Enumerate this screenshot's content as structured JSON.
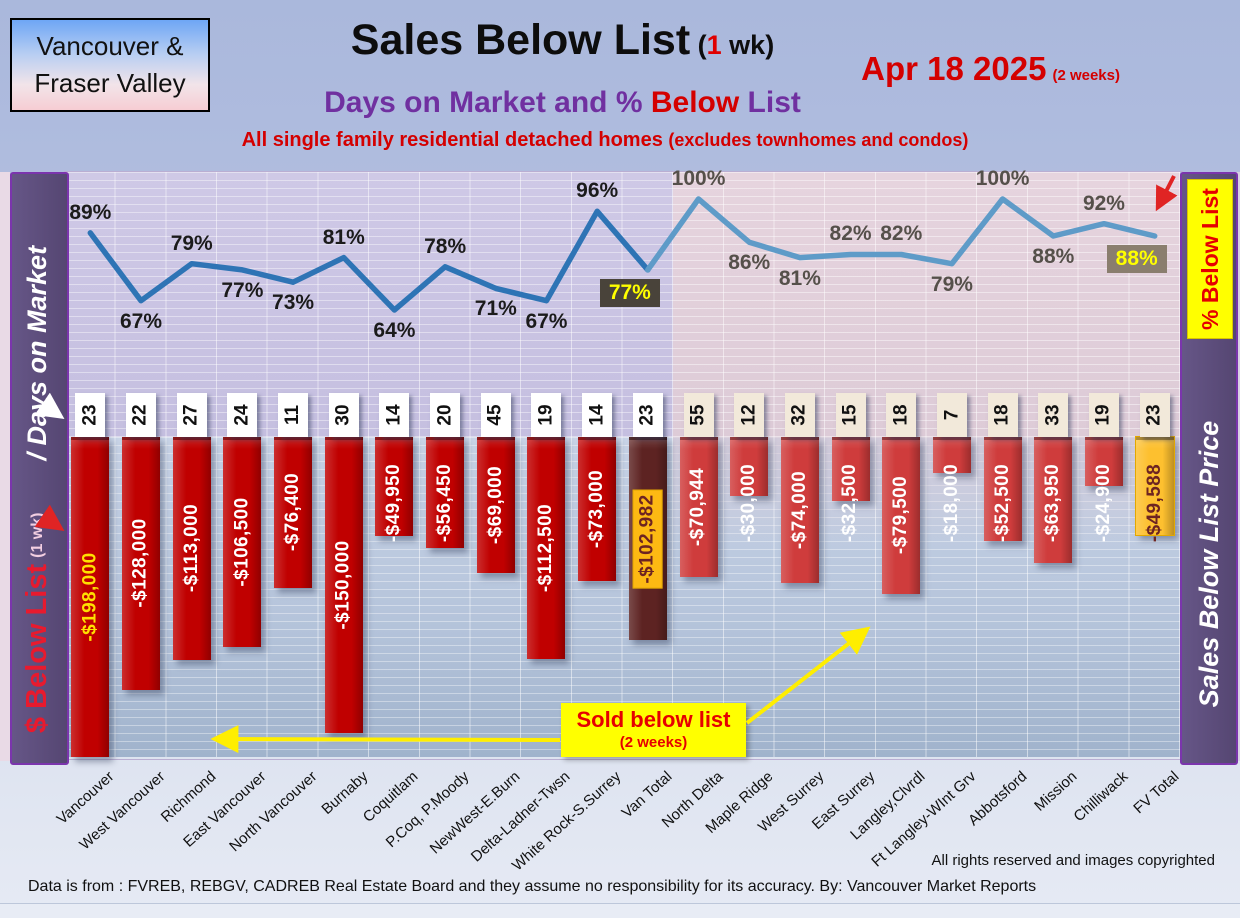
{
  "header": {
    "region_line1": "Vancouver &",
    "region_line2": "Fraser Valley",
    "title_main": "Sales Below List",
    "title_paren_open": " (",
    "title_one": "1",
    "title_paren_rest": " wk)",
    "date": "Apr 18  2025",
    "date_note": "(2 weeks)",
    "subtitle_purple1": "Days on Market and % ",
    "subtitle_red": "Below ",
    "subtitle_purple2": "List",
    "tagline_main": "All single family residential detached homes ",
    "tagline_paren": "(excludes townhomes and condos)"
  },
  "left_band": {
    "dollar_label": "$ Below List",
    "dollar_label_small": "(1 wk)",
    "days_label": "/ Days on Market"
  },
  "right_band": {
    "pct_label": "% Below List",
    "price_label": "Sales Below List Price"
  },
  "sold_note": {
    "line1": "Sold below list",
    "line2": "(2 weeks)"
  },
  "footer": {
    "rights": "All rights reserved and  images copyrighted",
    "source": "Data is from : FVREB, REBGV, CADREB Real Estate Board and they assume no responsibility for its accuracy. By: Vancouver Market Reports"
  },
  "chart_data": {
    "type": "combo: line (% below list) + inverted bars ($ below list) + days-on-market label row",
    "title": "Sales Below List (1 wk) - Days on Market and % Below List",
    "categories": [
      "Vancouver",
      "West Vancouver",
      "Richmond",
      "East Vancouver",
      "North Vancouver",
      "Burnaby",
      "Coquitlam",
      "P.Coq, P.Moody",
      "NewWest-E.Burn",
      "Delta-Ladner-Twsn",
      "White Rock-S.Surrey",
      "Van Total",
      "North Delta",
      "Maple Ridge",
      "West Surrey",
      "East Surrey",
      "Langley,Clvrdl",
      "Ft Langley-WInt Grv",
      "Abbotsford",
      "Mission",
      "Chilliwack",
      "FV Total"
    ],
    "van_count": 12,
    "series": [
      {
        "name": "% Below List",
        "type": "line",
        "values": [
          89,
          67,
          79,
          77,
          73,
          81,
          64,
          78,
          71,
          67,
          96,
          77,
          100,
          86,
          81,
          82,
          82,
          79,
          100,
          88,
          92,
          88
        ]
      },
      {
        "name": "Days on Market",
        "type": "label-row",
        "values": [
          23,
          22,
          27,
          24,
          11,
          30,
          14,
          20,
          45,
          19,
          14,
          23,
          55,
          12,
          32,
          15,
          18,
          7,
          18,
          33,
          19,
          23
        ]
      },
      {
        "name": "$ Below List",
        "type": "bar",
        "values": [
          -198000,
          -128000,
          -113000,
          -106500,
          -76400,
          -150000,
          -49950,
          -56450,
          -69000,
          -112500,
          -73000,
          -102982,
          -70944,
          -30000,
          -74000,
          -32500,
          -79500,
          -18000,
          -52500,
          -63950,
          -24900,
          -49588
        ],
        "labels": [
          "-$198,000",
          "-$128,000",
          "-$113,000",
          "-$106,500",
          "-$76,400",
          "-$150,000",
          "-$49,950",
          "-$56,450",
          "-$69,000",
          "-$112,500",
          "-$73,000",
          "-$102,982",
          "-$70,944",
          "-$30,000",
          "-$74,000",
          "-$32,500",
          "-$79,500",
          "-$18,000",
          "-$52,500",
          "-$63,950",
          "-$24,900",
          "-$49,588"
        ]
      }
    ],
    "pct_label_side": [
      "above",
      "below",
      "above",
      "below",
      "below",
      "above",
      "below",
      "above",
      "below",
      "below",
      "above",
      "below",
      "above",
      "below",
      "below",
      "above",
      "above",
      "below",
      "above",
      "below",
      "above",
      "below"
    ],
    "highlight_indices": [
      11,
      21
    ],
    "legend": "off",
    "grid": "faint horizontal and vertical pinstripes",
    "colors": {
      "van_line": "#2e74b5",
      "fv_line": "#5e9bc8",
      "van_bar": "#c00000",
      "fv_bar": "#cf3c3c",
      "van_total_bar": "#5d2322",
      "fv_total_bar": "#fdc02f",
      "van_pct_text": "#1b1b1b",
      "fv_pct_text": "#55504a",
      "highlight_bg_van": "#49433a",
      "highlight_bg_fv": "#8a7e6e",
      "highlight_text": "#ffff00",
      "day_box_van_bg": "#ffffff",
      "day_box_fv_bg": "#f2e9da",
      "bar_value_text": "#ffffff",
      "vancouver_value_text": "#ffe000",
      "total_value_box_bg": "#fdb913",
      "total_value_text": "#6d2422",
      "arrow_yellow": "#ffee00",
      "arrow_red": "#e02424"
    }
  }
}
